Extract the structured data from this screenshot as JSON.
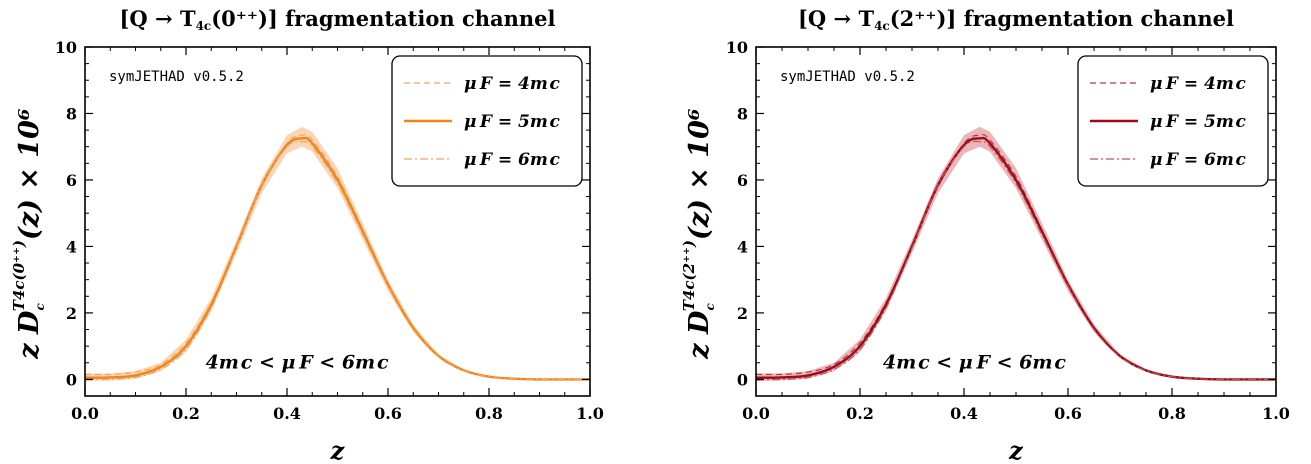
{
  "chart_data": [
    {
      "type": "line",
      "title": "[Q → T4c(0++)] fragmentation channel",
      "title_parts": {
        "prefix": "[Q → T",
        "sub": "4c",
        "rest": "(0⁺⁺)] fragmentation channel"
      },
      "xlabel": "z",
      "ylabel": "z D_c^{T4c(0++)}(z) × 10⁶",
      "ylabel_parts": {
        "main": "z D",
        "sub": "c",
        "sup": "T4c(0⁺⁺)",
        "rest": "(z) × 10⁶"
      },
      "xlim": [
        0,
        1
      ],
      "ylim": [
        -0.5,
        10
      ],
      "xticks": [
        "0.0",
        "0.2",
        "0.4",
        "0.6",
        "0.8",
        "1.0"
      ],
      "yticks": [
        "0",
        "2",
        "4",
        "6",
        "8",
        "10"
      ],
      "watermark": "symJETHAD v0.5.2",
      "annotation": "4m_c < μ_F < 6m_c",
      "legend_position": "top-right",
      "band_color": "#f9cfa9",
      "series": [
        {
          "name": "μ_F = 4m_c",
          "style": "dashed",
          "color": "#f7a35b",
          "x": [
            0,
            0.05,
            0.1,
            0.15,
            0.2,
            0.25,
            0.3,
            0.35,
            0.4,
            0.43,
            0.45,
            0.5,
            0.55,
            0.6,
            0.65,
            0.7,
            0.75,
            0.8,
            0.85,
            0.9,
            1.0
          ],
          "y": [
            0.15,
            0.15,
            0.22,
            0.45,
            1.1,
            2.3,
            4.0,
            5.8,
            7.1,
            7.35,
            7.2,
            6.1,
            4.5,
            2.85,
            1.55,
            0.7,
            0.27,
            0.08,
            0.02,
            0,
            0
          ]
        },
        {
          "name": "μ_F = 5m_c",
          "style": "solid",
          "color": "#f0841a",
          "x": [
            0,
            0.05,
            0.1,
            0.15,
            0.2,
            0.25,
            0.3,
            0.35,
            0.4,
            0.43,
            0.45,
            0.5,
            0.55,
            0.6,
            0.65,
            0.7,
            0.75,
            0.8,
            0.85,
            0.9,
            1.0
          ],
          "y": [
            0.05,
            0.06,
            0.12,
            0.38,
            1.0,
            2.25,
            4.0,
            5.85,
            7.05,
            7.25,
            7.1,
            6.0,
            4.45,
            2.85,
            1.55,
            0.7,
            0.27,
            0.08,
            0.02,
            0,
            0
          ]
        },
        {
          "name": "μ_F = 6m_c",
          "style": "dashdot",
          "color": "#f7a35b",
          "x": [
            0,
            0.05,
            0.1,
            0.15,
            0.2,
            0.25,
            0.3,
            0.35,
            0.4,
            0.43,
            0.45,
            0.5,
            0.55,
            0.6,
            0.65,
            0.7,
            0.75,
            0.8,
            0.85,
            0.9,
            1.0
          ],
          "y": [
            -0.02,
            0.0,
            0.06,
            0.3,
            0.9,
            2.15,
            3.95,
            5.85,
            7.0,
            7.15,
            7.0,
            5.9,
            4.35,
            2.8,
            1.5,
            0.68,
            0.26,
            0.08,
            0.02,
            0,
            0
          ]
        }
      ],
      "band": {
        "x": [
          0,
          0.05,
          0.1,
          0.15,
          0.2,
          0.25,
          0.3,
          0.35,
          0.4,
          0.43,
          0.45,
          0.5,
          0.55,
          0.6,
          0.65,
          0.7,
          0.75,
          0.8,
          0.85,
          0.9,
          1.0
        ],
        "upper": [
          0.18,
          0.18,
          0.25,
          0.5,
          1.2,
          2.45,
          4.2,
          6.05,
          7.35,
          7.6,
          7.45,
          6.35,
          4.7,
          3.0,
          1.65,
          0.75,
          0.3,
          0.09,
          0.02,
          0,
          0
        ],
        "lower": [
          -0.05,
          -0.03,
          0.02,
          0.25,
          0.82,
          2.05,
          3.8,
          5.6,
          6.8,
          7.0,
          6.85,
          5.75,
          4.2,
          2.65,
          1.42,
          0.64,
          0.24,
          0.07,
          0.02,
          0,
          0
        ]
      }
    },
    {
      "type": "line",
      "title": "[Q → T4c(2++)] fragmentation channel",
      "title_parts": {
        "prefix": "[Q → T",
        "sub": "4c",
        "rest": "(2⁺⁺)] fragmentation channel"
      },
      "xlabel": "z",
      "ylabel": "z D_c^{T4c(2++)}(z) × 10⁶",
      "ylabel_parts": {
        "main": "z D",
        "sub": "c",
        "sup": "T4c(2⁺⁺)",
        "rest": "(z) × 10⁶"
      },
      "xlim": [
        0,
        1
      ],
      "ylim": [
        -0.5,
        10
      ],
      "xticks": [
        "0.0",
        "0.2",
        "0.4",
        "0.6",
        "0.8",
        "1.0"
      ],
      "yticks": [
        "0",
        "2",
        "4",
        "6",
        "8",
        "10"
      ],
      "watermark": "symJETHAD v0.5.2",
      "annotation": "4m_c < μ_F < 6m_c",
      "legend_position": "top-right",
      "band_color": "#e8a9ae",
      "series": [
        {
          "name": "μ_F = 4m_c",
          "style": "dashed",
          "color": "#b53a45",
          "x": [
            0,
            0.05,
            0.1,
            0.15,
            0.2,
            0.25,
            0.3,
            0.35,
            0.4,
            0.43,
            0.45,
            0.5,
            0.55,
            0.6,
            0.65,
            0.7,
            0.75,
            0.8,
            0.85,
            0.9,
            1.0
          ],
          "y": [
            0.15,
            0.15,
            0.22,
            0.45,
            1.1,
            2.3,
            4.0,
            5.8,
            7.1,
            7.35,
            7.2,
            6.1,
            4.5,
            2.85,
            1.55,
            0.7,
            0.27,
            0.08,
            0.02,
            0,
            0
          ]
        },
        {
          "name": "μ_F = 5m_c",
          "style": "solid",
          "color": "#9b0b16",
          "x": [
            0,
            0.05,
            0.1,
            0.15,
            0.2,
            0.25,
            0.3,
            0.35,
            0.4,
            0.43,
            0.45,
            0.5,
            0.55,
            0.6,
            0.65,
            0.7,
            0.75,
            0.8,
            0.85,
            0.9,
            1.0
          ],
          "y": [
            0.05,
            0.06,
            0.12,
            0.38,
            1.0,
            2.25,
            4.0,
            5.85,
            7.05,
            7.25,
            7.1,
            6.0,
            4.45,
            2.85,
            1.55,
            0.7,
            0.27,
            0.08,
            0.02,
            0,
            0
          ]
        },
        {
          "name": "μ_F = 6m_c",
          "style": "dashdot",
          "color": "#c0515b",
          "x": [
            0,
            0.05,
            0.1,
            0.15,
            0.2,
            0.25,
            0.3,
            0.35,
            0.4,
            0.43,
            0.45,
            0.5,
            0.55,
            0.6,
            0.65,
            0.7,
            0.75,
            0.8,
            0.85,
            0.9,
            1.0
          ],
          "y": [
            -0.02,
            0.0,
            0.06,
            0.3,
            0.9,
            2.15,
            3.95,
            5.85,
            7.0,
            7.15,
            7.0,
            5.9,
            4.35,
            2.8,
            1.5,
            0.68,
            0.26,
            0.08,
            0.02,
            0,
            0
          ]
        }
      ],
      "band": {
        "x": [
          0,
          0.05,
          0.1,
          0.15,
          0.2,
          0.25,
          0.3,
          0.35,
          0.4,
          0.43,
          0.45,
          0.5,
          0.55,
          0.6,
          0.65,
          0.7,
          0.75,
          0.8,
          0.85,
          0.9,
          1.0
        ],
        "upper": [
          0.18,
          0.18,
          0.25,
          0.5,
          1.2,
          2.45,
          4.2,
          6.05,
          7.35,
          7.6,
          7.45,
          6.35,
          4.7,
          3.0,
          1.65,
          0.75,
          0.3,
          0.09,
          0.02,
          0,
          0
        ],
        "lower": [
          -0.05,
          -0.03,
          0.02,
          0.25,
          0.82,
          2.05,
          3.8,
          5.6,
          6.8,
          7.0,
          6.85,
          5.75,
          4.2,
          2.65,
          1.42,
          0.64,
          0.24,
          0.07,
          0.02,
          0,
          0
        ]
      }
    }
  ]
}
